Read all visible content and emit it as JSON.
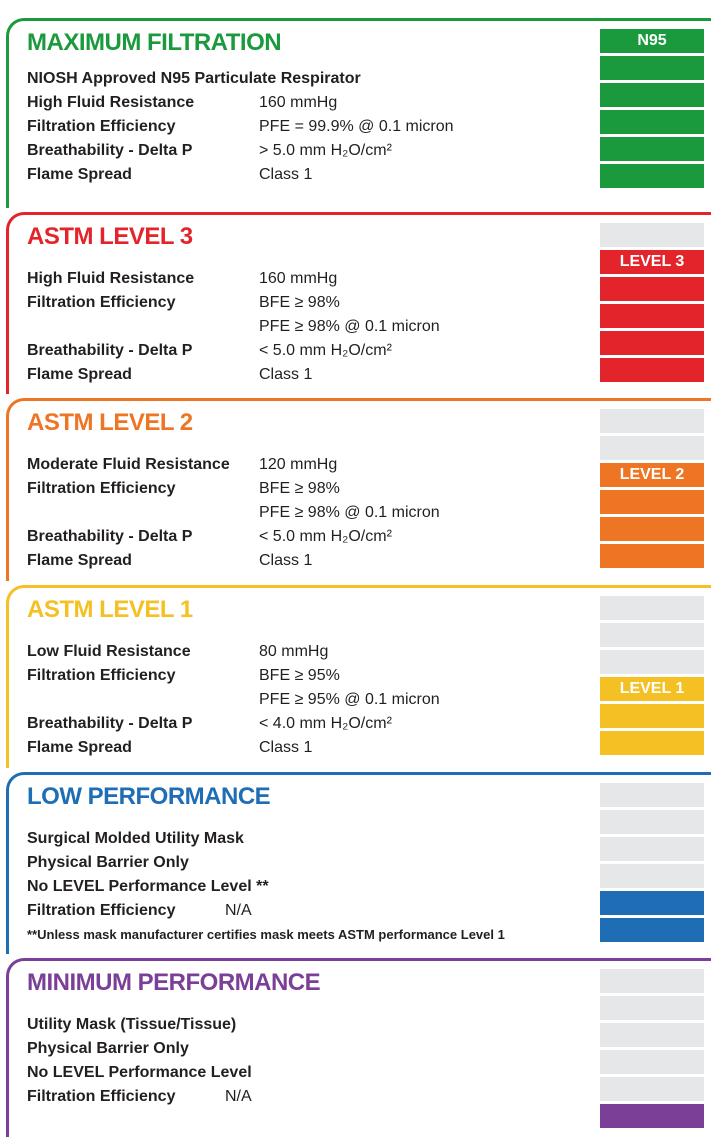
{
  "sections": [
    {
      "title": "MAXIMUM FILTRATION",
      "color": "#1a9a3c",
      "lines": [
        {
          "text": "NIOSH Approved N95 Particulate Respirator"
        },
        {
          "label": "High Fluid Resistance",
          "value": "160 mmHg"
        },
        {
          "label": "Filtration Efficiency",
          "value": "PFE = 99.9% @ 0.1 micron"
        },
        {
          "label": "Breathability - Delta P",
          "value": "> 5.0 mm H₂O/cm²"
        },
        {
          "label": "Flame Spread",
          "value": "Class 1"
        }
      ],
      "scale": {
        "empty": 0,
        "filled": 6,
        "label": "N95"
      }
    },
    {
      "title": "ASTM LEVEL 3",
      "color": "#e3242b",
      "lines": [
        {
          "label": "High Fluid Resistance",
          "value": "160 mmHg"
        },
        {
          "label": "Filtration Efficiency",
          "value": "BFE ≥ 98%"
        },
        {
          "value": "PFE ≥ 98% @ 0.1 micron"
        },
        {
          "label": "Breathability - Delta P",
          "value": "< 5.0 mm H₂O/cm²"
        },
        {
          "label": "Flame Spread",
          "value": "Class 1"
        }
      ],
      "scale": {
        "empty": 1,
        "filled": 5,
        "label": "LEVEL 3"
      }
    },
    {
      "title": "ASTM  LEVEL 2",
      "color": "#ee7523",
      "lines": [
        {
          "label": "Moderate Fluid Resistance",
          "value": "120 mmHg"
        },
        {
          "label": "Filtration Efficiency",
          "value": "BFE ≥ 98%"
        },
        {
          "value": "PFE ≥ 98% @ 0.1 micron"
        },
        {
          "label": "Breathability - Delta P",
          "value": "< 5.0 mm H₂O/cm²"
        },
        {
          "label": "Flame Spread",
          "value": "Class 1"
        }
      ],
      "scale": {
        "empty": 2,
        "filled": 4,
        "label": "LEVEL 2"
      }
    },
    {
      "title": "ASTM LEVEL 1",
      "color": "#f5c023",
      "lines": [
        {
          "label": "Low Fluid Resistance",
          "value": "80 mmHg"
        },
        {
          "label": "Filtration Efficiency",
          "value": "BFE ≥ 95%"
        },
        {
          "value": "PFE ≥ 95% @ 0.1 micron"
        },
        {
          "label": "Breathability - Delta P",
          "value": "< 4.0 mm  H₂O/cm²"
        },
        {
          "label": "Flame Spread",
          "value": "Class 1"
        }
      ],
      "scale": {
        "empty": 3,
        "filled": 3,
        "label": "LEVEL 1"
      }
    },
    {
      "title": "LOW PERFORMANCE",
      "color": "#1e6db5",
      "lines": [
        {
          "text": "Surgical Molded Utility Mask"
        },
        {
          "text": "Physical Barrier Only"
        },
        {
          "text": "No LEVEL Performance Level **"
        },
        {
          "label": "Filtration Efficiency",
          "value": "N/A"
        },
        {
          "note": "**Unless mask manufacturer certifies mask meets ASTM performance Level 1"
        }
      ],
      "scale": {
        "empty": 4,
        "filled": 2
      }
    },
    {
      "title": "MINIMUM PERFORMANCE",
      "color": "#7b3f98",
      "lines": [
        {
          "text": "Utility Mask (Tissue/Tissue)"
        },
        {
          "text": "Physical Barrier Only"
        },
        {
          "text": "No LEVEL Performance Level"
        },
        {
          "label": "Filtration Efficiency",
          "value": "N/A"
        }
      ],
      "scale": {
        "empty": 5,
        "filled": 1
      }
    }
  ]
}
